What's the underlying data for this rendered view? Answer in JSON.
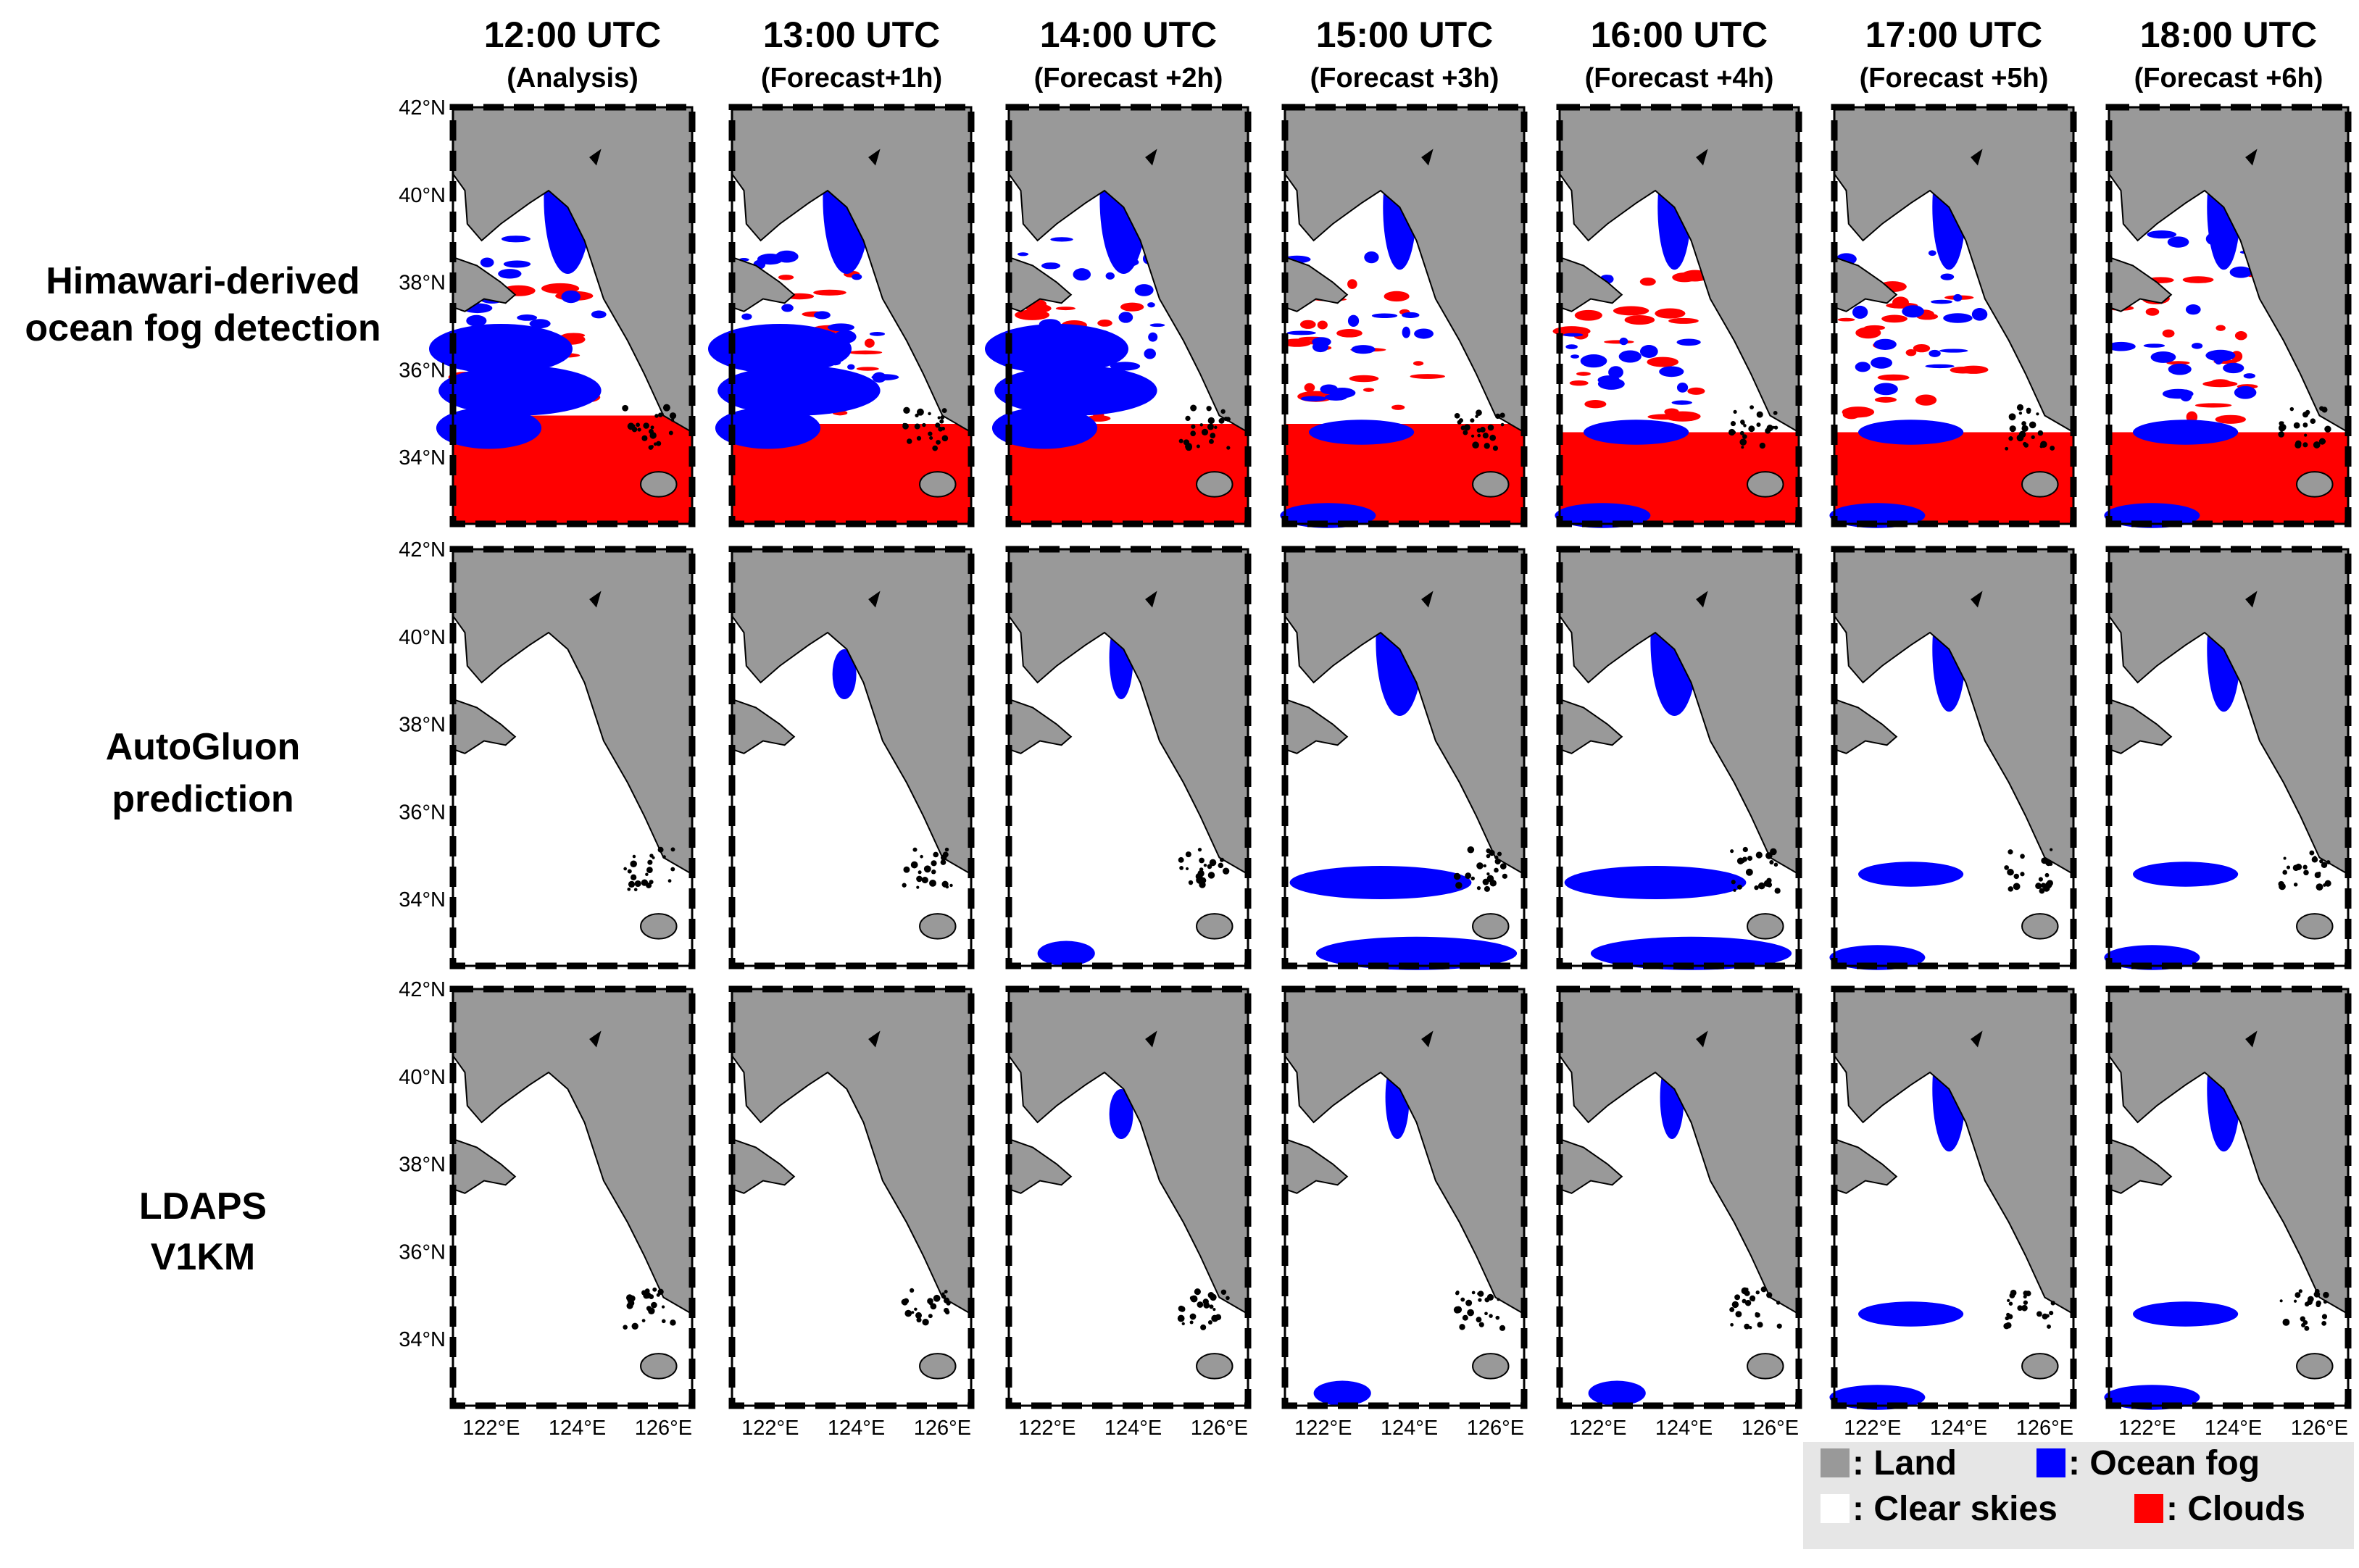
{
  "columns": [
    {
      "time": "12:00 UTC",
      "sub": "(Analysis)"
    },
    {
      "time": "13:00 UTC",
      "sub": "(Forecast+1h)"
    },
    {
      "time": "14:00 UTC",
      "sub": "(Forecast +2h)"
    },
    {
      "time": "15:00 UTC",
      "sub": "(Forecast +3h)"
    },
    {
      "time": "16:00 UTC",
      "sub": "(Forecast +4h)"
    },
    {
      "time": "17:00 UTC",
      "sub": "(Forecast +5h)"
    },
    {
      "time": "18:00 UTC",
      "sub": "(Forecast +6h)"
    }
  ],
  "rows": [
    {
      "label_lines": [
        "Himawari-derived",
        "ocean fog detection"
      ]
    },
    {
      "label_lines": [
        "AutoGluon",
        "prediction"
      ]
    },
    {
      "label_lines": [
        "LDAPS",
        "V1KM"
      ]
    }
  ],
  "lat_ticks": [
    "42°N",
    "40°N",
    "38°N",
    "36°N",
    "34°N"
  ],
  "lon_ticks": [
    "122°E",
    "124°E",
    "126°E"
  ],
  "legend": {
    "items": [
      {
        "label": ": Land",
        "color": "#999999"
      },
      {
        "label": ": Ocean fog",
        "color": "#0000ff"
      },
      {
        "label": ": Clear skies",
        "color": "#ffffff"
      },
      {
        "label": ": Clouds",
        "color": "#ff0000"
      }
    ],
    "background": "#e6e6e6"
  },
  "colors": {
    "land": "#999999",
    "ocean_fog": "#0000ff",
    "clear": "#ffffff",
    "clouds": "#ff0000"
  },
  "map_cells": [
    [
      {
        "fog_level": "extensive",
        "cloud_level": "extensive"
      },
      {
        "fog_level": "extensive",
        "cloud_level": "extensive"
      },
      {
        "fog_level": "extensive",
        "cloud_level": "extensive"
      },
      {
        "fog_level": "moderate",
        "cloud_level": "extensive"
      },
      {
        "fog_level": "moderate",
        "cloud_level": "extensive"
      },
      {
        "fog_level": "moderate",
        "cloud_level": "extensive"
      },
      {
        "fog_level": "moderate",
        "cloud_level": "extensive"
      }
    ],
    [
      {
        "fog_level": "none",
        "cloud_level": "none"
      },
      {
        "fog_level": "minimal",
        "cloud_level": "none"
      },
      {
        "fog_level": "low",
        "cloud_level": "none"
      },
      {
        "fog_level": "high",
        "cloud_level": "none"
      },
      {
        "fog_level": "high",
        "cloud_level": "none"
      },
      {
        "fog_level": "moderate",
        "cloud_level": "none"
      },
      {
        "fog_level": "moderate",
        "cloud_level": "none"
      }
    ],
    [
      {
        "fog_level": "none",
        "cloud_level": "none"
      },
      {
        "fog_level": "none",
        "cloud_level": "none"
      },
      {
        "fog_level": "minimal",
        "cloud_level": "none"
      },
      {
        "fog_level": "low",
        "cloud_level": "none"
      },
      {
        "fog_level": "low",
        "cloud_level": "none"
      },
      {
        "fog_level": "moderate",
        "cloud_level": "none"
      },
      {
        "fog_level": "moderate",
        "cloud_level": "none"
      }
    ]
  ]
}
